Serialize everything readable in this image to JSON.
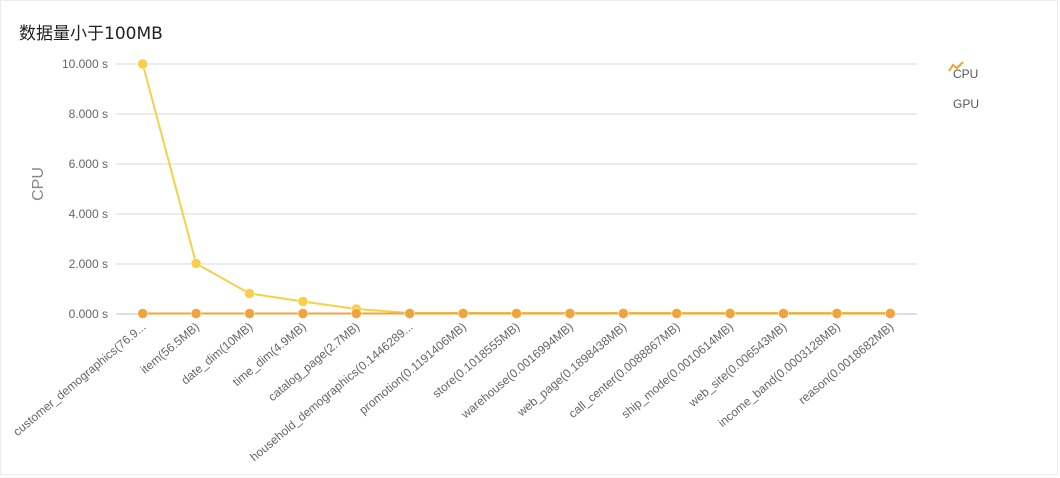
{
  "chart_data": {
    "type": "line",
    "title": "数据量小于100MB",
    "ylabel": "CPU",
    "ylim": [
      0,
      10
    ],
    "ytick_labels": [
      "0.000 s",
      "2.000 s",
      "4.000 s",
      "6.000 s",
      "8.000 s",
      "10.000 s"
    ],
    "yticks": [
      0,
      2,
      4,
      6,
      8,
      10
    ],
    "grid": true,
    "legend_placement": "top-right",
    "categories": [
      "customer_demographics(76.9...",
      "item(56.5MB)",
      "date_dim(10MB)",
      "time_dim(4.9MB)",
      "catalog_page(2.7MB)",
      "household_demographics(0.1446289...",
      "promotion(0.1191406MB)",
      "store(0.1018555MB)",
      "warehouse(0.0016994MB)",
      "web_page(0.1898438MB)",
      "call_center(0.0088867MB)",
      "ship_mode(0.0010614MB)",
      "web_site(0.006543MB)",
      "income_band(0.0003128MB)",
      "reason(0.0018682MB)"
    ],
    "series": [
      {
        "name": "CPU",
        "color": "#f7cf4a",
        "values": [
          10.0,
          2.02,
          0.82,
          0.5,
          0.2,
          0.04,
          0.04,
          0.04,
          0.04,
          0.04,
          0.04,
          0.04,
          0.04,
          0.04,
          0.04
        ]
      },
      {
        "name": "GPU",
        "color": "#f0a43a",
        "values": [
          0.02,
          0.02,
          0.02,
          0.02,
          0.02,
          0.02,
          0.02,
          0.02,
          0.02,
          0.02,
          0.02,
          0.02,
          0.02,
          0.02,
          0.02
        ]
      }
    ]
  },
  "legend_icon": "line-chart-icon"
}
